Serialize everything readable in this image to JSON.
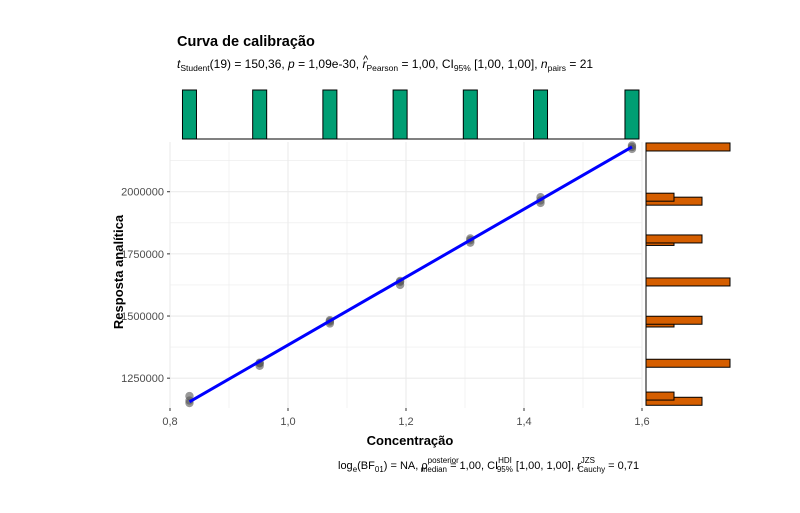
{
  "chart_data": {
    "type": "scatter",
    "title": "Curva de calibração",
    "subtitle": {
      "parts": [
        "t",
        "Student",
        "(19) = 150,36, ",
        "p",
        " = 1,09e-30, ",
        "r",
        "Pearson",
        " = 1,00, CI",
        "95%",
        " [1,00, 1,00], ",
        "n",
        "pairs",
        " = 21"
      ]
    },
    "caption": {
      "parts": [
        "log",
        "e",
        "(BF",
        "01",
        ") = NA, ",
        "ρ",
        "posterior",
        "median",
        " = 1,00, CI",
        "HDI",
        "95%",
        " [1,00, 1,00], ",
        "r",
        "JZS",
        "Cauchy",
        " = 0,71"
      ]
    },
    "xlabel": "Concentração",
    "ylabel": "Resposta analítica",
    "xlim": [
      0.8,
      1.6
    ],
    "ylim": [
      1130000,
      2200000
    ],
    "x_ticks": [
      0.8,
      1.0,
      1.2,
      1.4,
      1.6
    ],
    "x_tick_labels": [
      "0,8",
      "1,0",
      "1,2",
      "1,4",
      "1,6"
    ],
    "y_ticks": [
      1250000,
      1500000,
      1750000,
      2000000
    ],
    "y_tick_labels": [
      "1250000",
      "1500000",
      "1750000",
      "2000000"
    ],
    "grid": true,
    "points": [
      {
        "x": 0.833,
        "y": 1150000
      },
      {
        "x": 0.833,
        "y": 1160000
      },
      {
        "x": 0.833,
        "y": 1178000
      },
      {
        "x": 0.952,
        "y": 1300000
      },
      {
        "x": 0.952,
        "y": 1310000
      },
      {
        "x": 0.952,
        "y": 1312000
      },
      {
        "x": 1.071,
        "y": 1470000
      },
      {
        "x": 1.071,
        "y": 1478000
      },
      {
        "x": 1.071,
        "y": 1483000
      },
      {
        "x": 1.19,
        "y": 1625000
      },
      {
        "x": 1.19,
        "y": 1637000
      },
      {
        "x": 1.19,
        "y": 1641000
      },
      {
        "x": 1.309,
        "y": 1795000
      },
      {
        "x": 1.309,
        "y": 1805000
      },
      {
        "x": 1.309,
        "y": 1812000
      },
      {
        "x": 1.428,
        "y": 1955000
      },
      {
        "x": 1.428,
        "y": 1965000
      },
      {
        "x": 1.428,
        "y": 1978000
      },
      {
        "x": 1.583,
        "y": 2172000
      },
      {
        "x": 1.583,
        "y": 2180000
      },
      {
        "x": 1.583,
        "y": 2186000
      }
    ],
    "fit_line": {
      "x": [
        0.833,
        1.583
      ],
      "y": [
        1155000,
        2180000
      ]
    },
    "x_histogram": {
      "bins": [
        0.833,
        0.952,
        1.071,
        1.19,
        1.309,
        1.428,
        1.583
      ],
      "counts": [
        3,
        3,
        3,
        3,
        3,
        3,
        3
      ]
    },
    "y_histogram": {
      "bins": [
        {
          "y": 1157000,
          "count": 2
        },
        {
          "y": 1178000,
          "count": 1
        },
        {
          "y": 1310000,
          "count": 3
        },
        {
          "y": 1472000,
          "count": 1
        },
        {
          "y": 1483000,
          "count": 2
        },
        {
          "y": 1637000,
          "count": 3
        },
        {
          "y": 1800000,
          "count": 1
        },
        {
          "y": 1810000,
          "count": 2
        },
        {
          "y": 1962000,
          "count": 2
        },
        {
          "y": 1978000,
          "count": 1
        },
        {
          "y": 2180000,
          "count": 3
        }
      ],
      "max_count": 3
    },
    "colors": {
      "fit_line": "#0000ff",
      "points": "#555555",
      "x_hist_fill": "#009e73",
      "y_hist_fill": "#d55e00",
      "grid": "#ebebeb"
    }
  }
}
